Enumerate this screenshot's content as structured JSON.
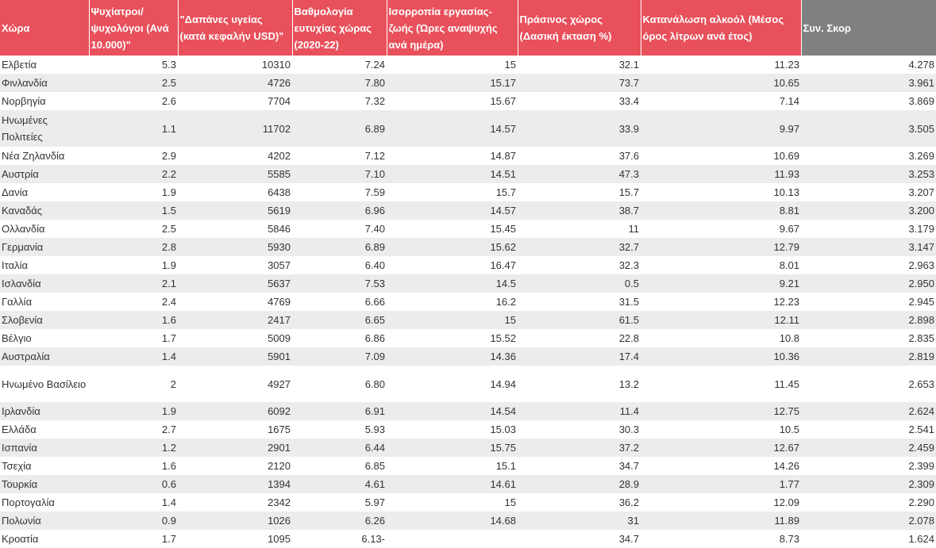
{
  "headers": [
    "Χώρα",
    "Ψυχίατροι/ ψυχολόγοι (Ανά 10.000)\"",
    "\"Δαπάνες υγείας (κατά κεφαλήν USD)\"",
    "Βαθμολογία ευτυχίας χώρας (2020-22)",
    "Ισορροπία εργασίας-ζωής (Ώρες αναψυχής ανά ημέρα)",
    "Πράσινος χώρος (Δασική έκταση %)",
    "Κατανάλωση αλκοόλ (Μέσος όρος λίτρων ανά έτος)",
    "Συν. Σκορ"
  ],
  "rows": [
    [
      "Ελβετία",
      "5.3",
      "10310",
      "7.24",
      "15",
      "32.1",
      "11.23",
      "4.278"
    ],
    [
      "Φινλανδία",
      "2.5",
      "4726",
      "7.80",
      "15.17",
      "73.7",
      "10.65",
      "3.961"
    ],
    [
      "Νορβηγία",
      "2.6",
      "7704",
      "7.32",
      "15.67",
      "33.4",
      "7.14",
      "3.869"
    ],
    [
      "Ηνωμένες Πολιτείες",
      "1.1",
      "11702",
      "6.89",
      "14.57",
      "33.9",
      "9.97",
      "3.505"
    ],
    [
      "Νέα Ζηλανδία",
      "2.9",
      "4202",
      "7.12",
      "14.87",
      "37.6",
      "10.69",
      "3.269"
    ],
    [
      "Αυστρία",
      "2.2",
      "5585",
      "7.10",
      "14.51",
      "47.3",
      "11.93",
      "3.253"
    ],
    [
      "Δανία",
      "1.9",
      "6438",
      "7.59",
      "15.7",
      "15.7",
      "10.13",
      "3.207"
    ],
    [
      "Καναδάς",
      "1.5",
      "5619",
      "6.96",
      "14.57",
      "38.7",
      "8.81",
      "3.200"
    ],
    [
      "Ολλανδία",
      "2.5",
      "5846",
      "7.40",
      "15.45",
      "11",
      "9.67",
      "3.179"
    ],
    [
      "Γερμανία",
      "2.8",
      "5930",
      "6.89",
      "15.62",
      "32.7",
      "12.79",
      "3.147"
    ],
    [
      "Ιταλία",
      "1.9",
      "3057",
      "6.40",
      "16.47",
      "32.3",
      "8.01",
      "2.963"
    ],
    [
      "Ισλανδία",
      "2.1",
      "5637",
      "7.53",
      "14.5",
      "0.5",
      "9.21",
      "2.950"
    ],
    [
      "Γαλλία",
      "2.4",
      "4769",
      "6.66",
      "16.2",
      "31.5",
      "12.23",
      "2.945"
    ],
    [
      "Σλοβενία",
      "1.6",
      "2417",
      "6.65",
      "15",
      "61.5",
      "12.11",
      "2.898"
    ],
    [
      "Βέλγιο",
      "1.7",
      "5009",
      "6.86",
      "15.52",
      "22.8",
      "10.8",
      "2.835"
    ],
    [
      "Αυστραλία",
      "1.4",
      "5901",
      "7.09",
      "14.36",
      "17.4",
      "10.36",
      "2.819"
    ],
    [
      "Ηνωμένο Βασίλειο",
      "2",
      "4927",
      "6.80",
      "14.94",
      "13.2",
      "11.45",
      "2.653"
    ],
    [
      "Ιρλανδία",
      "1.9",
      "6092",
      "6.91",
      "14.54",
      "11.4",
      "12.75",
      "2.624"
    ],
    [
      "Ελλάδα",
      "2.7",
      "1675",
      "5.93",
      "15.03",
      "30.3",
      "10.5",
      "2.541"
    ],
    [
      "Ισπανία",
      "1.2",
      "2901",
      "6.44",
      "15.75",
      "37.2",
      "12.67",
      "2.459"
    ],
    [
      "Τσεχία",
      "1.6",
      "2120",
      "6.85",
      "15.1",
      "34.7",
      "14.26",
      "2.399"
    ],
    [
      "Τουρκία",
      "0.6",
      "1394",
      "4.61",
      "14.61",
      "28.9",
      "1.77",
      "2.309"
    ],
    [
      "Πορτογαλία",
      "1.4",
      "2342",
      "5.97",
      "15",
      "36.2",
      "12.09",
      "2.290"
    ],
    [
      "Πολωνία",
      "0.9",
      "1026",
      "6.26",
      "14.68",
      "31",
      "11.89",
      "2.078"
    ],
    [
      "Κροατία",
      "1.7",
      "1095",
      "6.13-",
      "",
      "34.7",
      "8.73",
      "1.624"
    ]
  ]
}
